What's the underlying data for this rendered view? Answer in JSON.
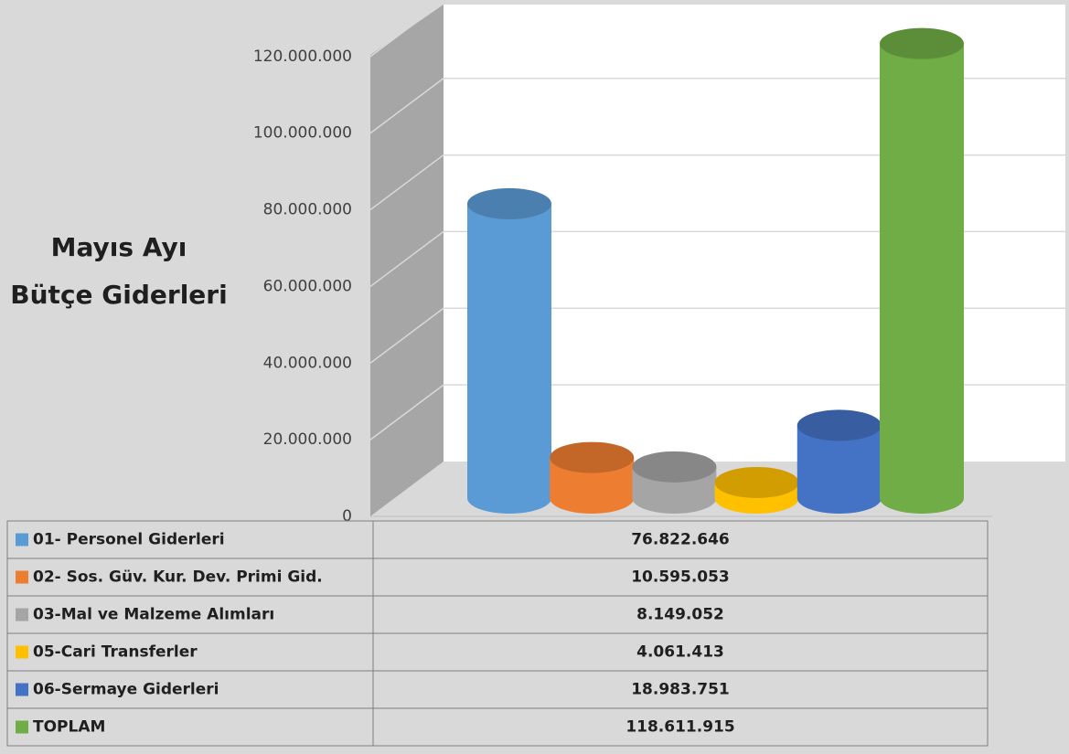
{
  "chart_data": {
    "type": "bar",
    "title": "Mayıs Ayı\nBütçe Giderleri",
    "categories": [
      "01- Personel Giderleri",
      "02- Sos. Güv. Kur. Dev. Primi Gid.",
      "03-Mal ve Malzeme Alımları",
      "05-Cari Transferler",
      "06-Sermaye Giderleri",
      "TOPLAM"
    ],
    "values": [
      76822646,
      10595053,
      8149052,
      4061413,
      18983751,
      118611915
    ],
    "value_labels": [
      "76.822.646",
      "10.595.053",
      "8.149.052",
      "4.061.413",
      "18.983.751",
      "118.611.915"
    ],
    "colors": [
      "#5b9bd5",
      "#ed7d31",
      "#a5a5a5",
      "#ffc000",
      "#4472c4",
      "#70ad47"
    ],
    "ylim": [
      0,
      140000000
    ],
    "yticks": [
      0,
      {
        "value": 20000000,
        "label": "20.000.000"
      },
      {
        "value": 40000000,
        "label": "40.000.000"
      },
      {
        "value": 60000000,
        "label": "60.000.000"
      },
      {
        "value": 80000000,
        "label": "80.000.000"
      },
      {
        "value": 100000000,
        "label": "100.000.000"
      },
      {
        "value": 120000000,
        "label": "120.000.000"
      }
    ],
    "grid": true
  }
}
